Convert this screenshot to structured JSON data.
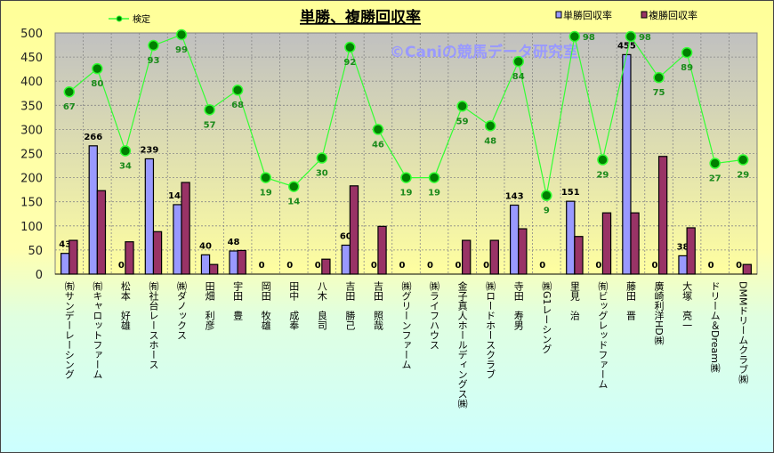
{
  "chart_data": {
    "type": "bar",
    "title": "単勝、複勝回収率",
    "watermark": "©Caniの競馬データ研究室",
    "ylim": [
      0,
      500
    ],
    "yticks": [
      0,
      50,
      100,
      150,
      200,
      250,
      300,
      350,
      400,
      450,
      500
    ],
    "secondary_ylim": [
      -35,
      100
    ],
    "grid": true,
    "legend_placement": "top",
    "categories": [
      "㈲サンデーレーシング",
      "㈲キャロットファーム",
      "松本　好雄",
      "㈲社台レースホース",
      "㈱ダノックス",
      "田畑　利彦",
      "宇田　豊",
      "岡田　牧雄",
      "田中　成奉",
      "八木　良司",
      "吉田　勝己",
      "吉田　照哉",
      "㈱グリーンファーム",
      "㈱ライフハウス",
      "金子真人ホールディングス㈱",
      "㈱ロードホースクラブ",
      "寺田　寿男",
      "㈱G1レーシング",
      "里見　治",
      "㈲ビッグレッドファーム",
      "藤田　晋",
      "廣崎利洋HD㈱",
      "大塚　亮一",
      "ドリーム＆Dream㈱",
      "DMMドリームクラブ㈱"
    ],
    "series": [
      {
        "name": "単勝回収率",
        "type": "bar",
        "color": "#9999ff",
        "labeled": true,
        "values": [
          43,
          266,
          0,
          239,
          144,
          40,
          48,
          0,
          0,
          0,
          60,
          0,
          0,
          0,
          0,
          0,
          143,
          0,
          151,
          0,
          455,
          0,
          38,
          0,
          0
        ]
      },
      {
        "name": "複勝回収率",
        "type": "bar",
        "color": "#993366",
        "labeled": false,
        "values": [
          70,
          173,
          67,
          88,
          190,
          20,
          49,
          0,
          0,
          31,
          183,
          99,
          0,
          0,
          70,
          70,
          94,
          0,
          78,
          127,
          127,
          244,
          96,
          0,
          20
        ]
      },
      {
        "name": "検定",
        "type": "line",
        "axis": "secondary",
        "color": "#33ff33",
        "marker_color": "#008000",
        "labeled": true,
        "values": [
          67,
          80,
          34,
          93,
          99,
          57,
          68,
          19,
          14,
          30,
          92,
          46,
          19,
          19,
          59,
          48,
          84,
          9,
          98,
          29,
          98,
          75,
          89,
          27,
          29
        ]
      }
    ]
  }
}
